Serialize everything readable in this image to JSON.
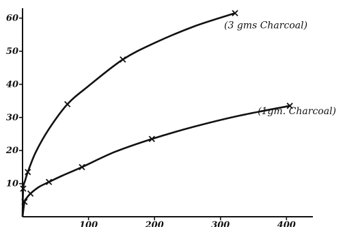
{
  "chart_data": {
    "type": "line",
    "title": "",
    "xlabel": "",
    "ylabel": "",
    "xlim": [
      0,
      440
    ],
    "ylim": [
      0,
      63
    ],
    "x_ticks": [
      100,
      200,
      300,
      400
    ],
    "y_ticks": [
      10,
      20,
      30,
      40,
      50,
      60
    ],
    "x_tick_labels": [
      "100",
      "200",
      "300",
      "400"
    ],
    "y_tick_labels": [
      "10",
      "20",
      "30",
      "40",
      "50",
      "60"
    ],
    "grid": false,
    "colors": {
      "ink": "#111111",
      "background": "#ffffff"
    },
    "series": [
      {
        "name": "(3 gms Charcoal)",
        "points": [
          [
            1,
            8.5
          ],
          [
            8,
            13.5
          ],
          [
            68,
            34
          ],
          [
            152,
            47.5
          ],
          [
            322,
            61.5
          ]
        ],
        "curve": [
          [
            0,
            0
          ],
          [
            1,
            8.5
          ],
          [
            4,
            11
          ],
          [
            8,
            13.5
          ],
          [
            20,
            19.5
          ],
          [
            40,
            26.5
          ],
          [
            68,
            34
          ],
          [
            100,
            39.5
          ],
          [
            152,
            47.5
          ],
          [
            200,
            52.5
          ],
          [
            260,
            57.5
          ],
          [
            322,
            61.5
          ]
        ]
      },
      {
        "name": "(1gm. Charcoal)",
        "points": [
          [
            3,
            4.5
          ],
          [
            12,
            7
          ],
          [
            40,
            10.5
          ],
          [
            90,
            15
          ],
          [
            196,
            23.5
          ],
          [
            405,
            33.5
          ]
        ],
        "curve": [
          [
            0,
            0
          ],
          [
            3,
            4.5
          ],
          [
            6,
            5.6
          ],
          [
            12,
            7
          ],
          [
            25,
            9
          ],
          [
            40,
            10.5
          ],
          [
            60,
            12.4
          ],
          [
            90,
            15
          ],
          [
            140,
            19.6
          ],
          [
            196,
            23.5
          ],
          [
            260,
            27.2
          ],
          [
            330,
            30.6
          ],
          [
            405,
            33.5
          ]
        ]
      }
    ]
  }
}
